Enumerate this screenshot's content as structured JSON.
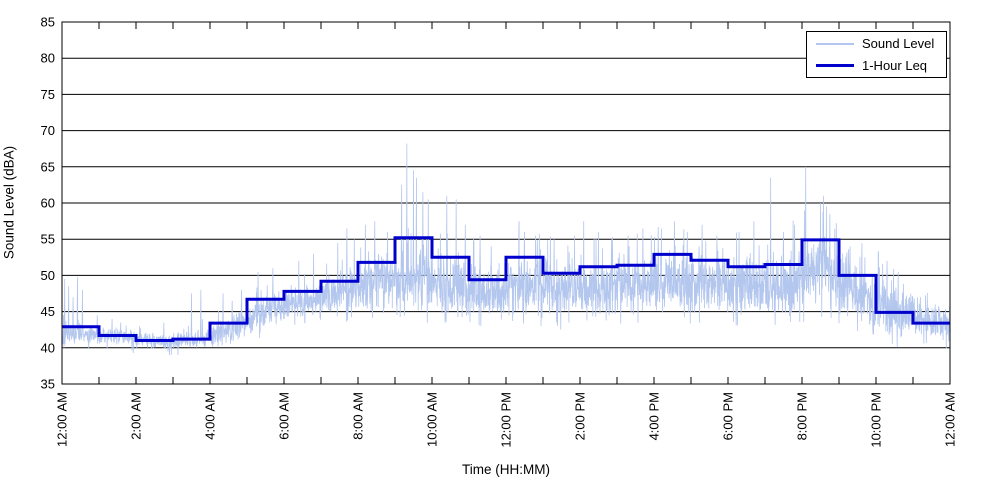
{
  "chart_data": {
    "type": "line",
    "title": "",
    "xlabel": "Time (HH:MM)",
    "ylabel": "Sound Level (dBA)",
    "ylim": [
      35,
      85
    ],
    "ytick_values": [
      35,
      40,
      45,
      50,
      55,
      60,
      65,
      70,
      75,
      80,
      85
    ],
    "xlim_hours": [
      0,
      24
    ],
    "xtick_major_step_hours": 2,
    "xtick_minor_step_hours": 1,
    "xtick_major_labels": [
      "12:00 AM",
      "2:00 AM",
      "4:00 AM",
      "6:00 AM",
      "8:00 AM",
      "10:00 AM",
      "12:00 PM",
      "2:00 PM",
      "4:00 PM",
      "6:00 PM",
      "8:00 PM",
      "10:00 PM",
      "12:00 AM"
    ],
    "grid": {
      "horizontal": true,
      "vertical": false,
      "color": "#000000"
    },
    "legend": {
      "position": "top-right",
      "entries": [
        {
          "label": "Sound Level",
          "color": "#b3c6ee",
          "line_width": 2
        },
        {
          "label": "1-Hour Leq",
          "color": "#0000cc",
          "line_width": 3
        }
      ]
    },
    "series": [
      {
        "name": "Sound Level",
        "type": "raw-noise",
        "color": "#b3c6ee",
        "samples_per_hour": 150,
        "seed": 20240817,
        "hourly_band": [
          [
            40.3,
            43.5
          ],
          [
            40.4,
            43.0
          ],
          [
            39.6,
            42.0
          ],
          [
            39.5,
            42.5
          ],
          [
            40.2,
            44.5
          ],
          [
            42.5,
            47.5
          ],
          [
            44.0,
            49.0
          ],
          [
            44.5,
            50.5
          ],
          [
            45.0,
            53.5
          ],
          [
            44.5,
            54.0
          ],
          [
            44.0,
            53.5
          ],
          [
            43.5,
            51.5
          ],
          [
            44.0,
            53.5
          ],
          [
            43.5,
            52.0
          ],
          [
            44.0,
            52.5
          ],
          [
            44.0,
            53.0
          ],
          [
            44.5,
            54.0
          ],
          [
            44.0,
            53.5
          ],
          [
            44.0,
            53.0
          ],
          [
            44.0,
            53.5
          ],
          [
            45.0,
            57.0
          ],
          [
            43.0,
            52.0
          ],
          [
            41.0,
            49.5
          ],
          [
            40.5,
            46.0
          ]
        ],
        "spikes": [
          [
            0.07,
            49.5
          ],
          [
            0.18,
            48.5
          ],
          [
            0.3,
            47.0
          ],
          [
            0.42,
            49.8
          ],
          [
            0.55,
            48.0
          ],
          [
            0.95,
            44.5
          ],
          [
            1.35,
            44.0
          ],
          [
            2.1,
            43.0
          ],
          [
            2.75,
            43.5
          ],
          [
            3.5,
            47.5
          ],
          [
            3.75,
            48.0
          ],
          [
            4.35,
            47.5
          ],
          [
            4.6,
            46.5
          ],
          [
            4.85,
            48.0
          ],
          [
            5.3,
            50.5
          ],
          [
            5.7,
            51.0
          ],
          [
            6.4,
            52.0
          ],
          [
            6.8,
            53.0
          ],
          [
            7.45,
            54.5
          ],
          [
            7.7,
            56.5
          ],
          [
            7.9,
            55.0
          ],
          [
            8.2,
            57.0
          ],
          [
            8.45,
            57.5
          ],
          [
            8.8,
            56.0
          ],
          [
            9.18,
            62.5
          ],
          [
            9.32,
            68.2
          ],
          [
            9.5,
            64.5
          ],
          [
            9.58,
            63.5
          ],
          [
            9.75,
            61.5
          ],
          [
            9.9,
            60.5
          ],
          [
            10.4,
            61.0
          ],
          [
            10.65,
            60.5
          ],
          [
            10.9,
            57.0
          ],
          [
            11.3,
            55.5
          ],
          [
            11.6,
            54.0
          ],
          [
            12.35,
            57.5
          ],
          [
            12.5,
            56.0
          ],
          [
            12.8,
            55.5
          ],
          [
            13.3,
            55.0
          ],
          [
            13.85,
            55.5
          ],
          [
            14.1,
            57.5
          ],
          [
            14.5,
            56.0
          ],
          [
            14.85,
            55.0
          ],
          [
            15.3,
            55.5
          ],
          [
            15.7,
            56.5
          ],
          [
            16.2,
            56.5
          ],
          [
            16.55,
            57.5
          ],
          [
            16.9,
            56.0
          ],
          [
            17.3,
            57.0
          ],
          [
            17.7,
            55.5
          ],
          [
            18.3,
            56.0
          ],
          [
            18.7,
            57.5
          ],
          [
            19.15,
            63.5
          ],
          [
            19.5,
            56.0
          ],
          [
            19.8,
            57.0
          ],
          [
            20.1,
            65.0
          ],
          [
            20.5,
            60.0
          ],
          [
            20.58,
            61.0
          ],
          [
            20.66,
            59.5
          ],
          [
            20.75,
            58.5
          ],
          [
            21.3,
            54.0
          ],
          [
            21.7,
            52.5
          ],
          [
            22.3,
            52.0
          ],
          [
            22.6,
            50.5
          ],
          [
            23.2,
            47.0
          ],
          [
            23.6,
            46.0
          ]
        ]
      },
      {
        "name": "1-Hour Leq",
        "type": "step",
        "color": "#0000cc",
        "hours": [
          0,
          1,
          2,
          3,
          4,
          5,
          6,
          7,
          8,
          9,
          10,
          11,
          12,
          13,
          14,
          15,
          16,
          17,
          18,
          19,
          20,
          21,
          22,
          23
        ],
        "hour_values": [
          42.9,
          41.7,
          41.0,
          41.2,
          43.4,
          46.7,
          47.8,
          49.2,
          51.8,
          55.2,
          52.5,
          49.4,
          52.5,
          50.3,
          51.2,
          51.4,
          52.9,
          52.1,
          51.2,
          51.5,
          54.9,
          50.0,
          44.9,
          43.4
        ]
      }
    ]
  }
}
